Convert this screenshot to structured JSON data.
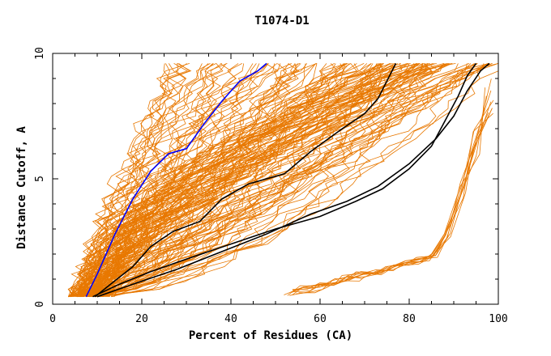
{
  "chart_data": {
    "type": "line",
    "title": "T1074-D1",
    "xlabel": "Percent of Residues (CA)",
    "ylabel": "Distance Cutoff, A",
    "xlim": [
      0,
      100
    ],
    "ylim": [
      0,
      10
    ],
    "x_ticks": [
      "0",
      "20",
      "40",
      "60",
      "80",
      "100"
    ],
    "y_ticks": [
      "0",
      "5",
      "10"
    ],
    "grid": false,
    "legend": "none",
    "background_color": "#ffffff",
    "background_series_color": "#e87800",
    "background_series_count": 150,
    "background_series_note": "plus a separate low-cluster group starting near x=50",
    "highlighted_series": [
      {
        "color": "#0000ff",
        "points": [
          [
            7.5,
            0.3
          ],
          [
            10,
            1.2
          ],
          [
            14,
            2.8
          ],
          [
            18,
            4.2
          ],
          [
            22,
            5.3
          ],
          [
            26,
            6.0
          ],
          [
            30,
            6.2
          ],
          [
            34,
            7.2
          ],
          [
            38,
            8.1
          ],
          [
            42,
            8.9
          ],
          [
            46,
            9.3
          ],
          [
            48,
            9.6
          ]
        ]
      },
      {
        "color": "#000000",
        "points": [
          [
            9.5,
            0.3
          ],
          [
            13,
            0.8
          ],
          [
            18,
            1.5
          ],
          [
            22,
            2.3
          ],
          [
            27,
            2.9
          ],
          [
            33,
            3.3
          ],
          [
            38,
            4.2
          ],
          [
            44,
            4.8
          ],
          [
            52,
            5.2
          ],
          [
            58,
            6.1
          ],
          [
            65,
            7.0
          ],
          [
            70,
            7.6
          ],
          [
            73,
            8.2
          ],
          [
            75,
            8.9
          ],
          [
            77,
            9.6
          ]
        ]
      },
      {
        "color": "#000000",
        "points": [
          [
            9,
            0.3
          ],
          [
            15,
            0.8
          ],
          [
            22,
            1.3
          ],
          [
            30,
            1.8
          ],
          [
            40,
            2.4
          ],
          [
            50,
            3.0
          ],
          [
            60,
            3.5
          ],
          [
            68,
            4.1
          ],
          [
            74,
            4.6
          ],
          [
            80,
            5.4
          ],
          [
            85,
            6.3
          ],
          [
            88,
            7.3
          ],
          [
            91,
            8.3
          ],
          [
            93,
            9.1
          ],
          [
            95,
            9.6
          ]
        ]
      },
      {
        "color": "#000000",
        "points": [
          [
            10,
            0.3
          ],
          [
            18,
            0.8
          ],
          [
            28,
            1.4
          ],
          [
            38,
            2.1
          ],
          [
            48,
            2.8
          ],
          [
            58,
            3.6
          ],
          [
            66,
            4.1
          ],
          [
            73,
            4.7
          ],
          [
            80,
            5.6
          ],
          [
            86,
            6.6
          ],
          [
            90,
            7.5
          ],
          [
            93,
            8.5
          ],
          [
            96,
            9.3
          ],
          [
            98,
            9.6
          ]
        ]
      }
    ]
  }
}
